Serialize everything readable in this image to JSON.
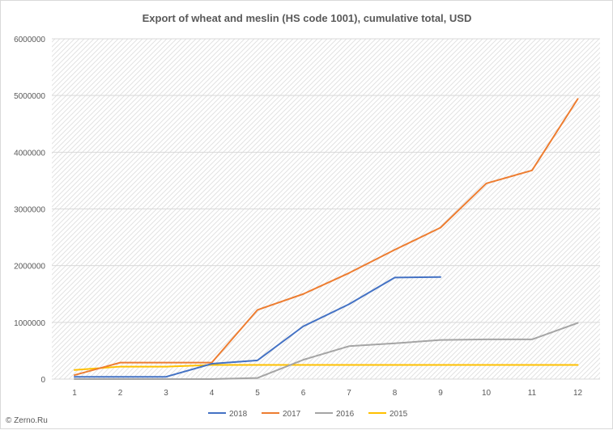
{
  "chart_data": {
    "type": "line",
    "title": "Export of wheat and meslin (HS code 1001), cumulative total, USD",
    "xlabel": "",
    "ylabel": "",
    "x": [
      1,
      2,
      3,
      4,
      5,
      6,
      7,
      8,
      9,
      10,
      11,
      12
    ],
    "ylim": [
      0,
      6000000
    ],
    "yticks": [
      0,
      1000000,
      2000000,
      3000000,
      4000000,
      5000000,
      6000000
    ],
    "ytick_labels": [
      "0",
      "1000000",
      "2000000",
      "3000000",
      "4000000",
      "5000000",
      "6000000"
    ],
    "xtick_labels": [
      "1",
      "2",
      "3",
      "4",
      "5",
      "6",
      "7",
      "8",
      "9",
      "10",
      "11",
      "12"
    ],
    "grid": "horizontal",
    "plot_background": "hatched",
    "legend_position": "bottom",
    "series": [
      {
        "name": "2018",
        "color": "#4472c4",
        "values": [
          40000,
          40000,
          40000,
          270000,
          330000,
          930000,
          1320000,
          1790000,
          1800000,
          null,
          null,
          null
        ]
      },
      {
        "name": "2017",
        "color": "#ed7d31",
        "values": [
          70000,
          290000,
          290000,
          290000,
          1220000,
          1500000,
          1870000,
          2280000,
          2670000,
          3450000,
          3680000,
          4940000
        ]
      },
      {
        "name": "2016",
        "color": "#a5a5a5",
        "values": [
          0,
          0,
          0,
          0,
          20000,
          340000,
          580000,
          630000,
          690000,
          700000,
          700000,
          990000
        ]
      },
      {
        "name": "2015",
        "color": "#ffc000",
        "values": [
          160000,
          220000,
          220000,
          250000,
          250000,
          250000,
          250000,
          250000,
          250000,
          250000,
          250000,
          250000
        ]
      }
    ]
  },
  "watermark": "© Zerno.Ru"
}
